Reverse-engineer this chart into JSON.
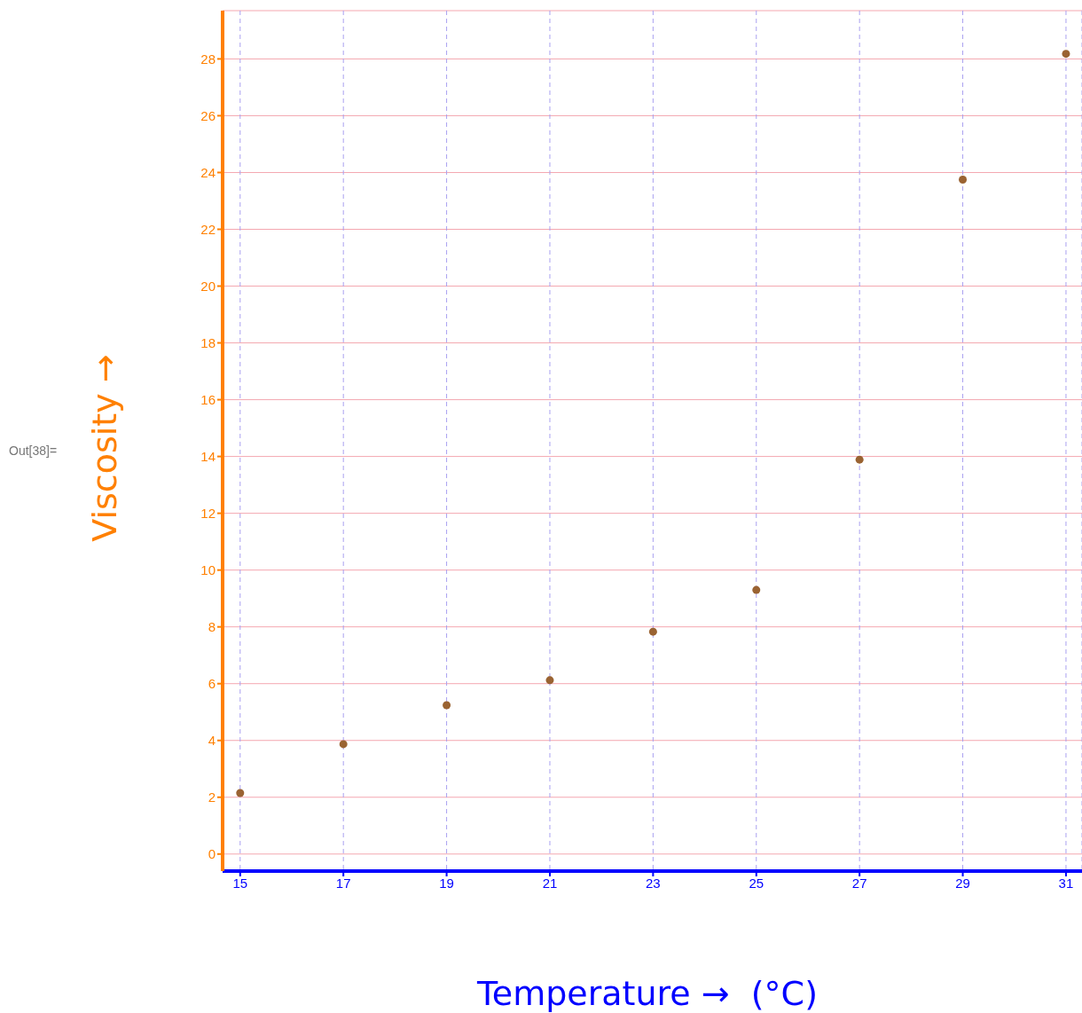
{
  "chart_data": {
    "type": "scatter",
    "xlabel": "Temperature →  (°C)",
    "ylabel": "Viscosity →",
    "annotations": [
      "Out[38]="
    ],
    "x": [
      15,
      17,
      19,
      21,
      23,
      25,
      27,
      29,
      31
    ],
    "series": [
      {
        "color": "#9a6332",
        "values": [
          2.15,
          3.87,
          5.24,
          6.12,
          7.83,
          9.3,
          13.89,
          23.75,
          28.18
        ]
      }
    ],
    "xlim": [
      14.66,
      31.31
    ],
    "xticks": [
      15,
      17,
      19,
      21,
      23,
      25,
      27,
      29,
      31
    ],
    "ylim": [
      -0.6,
      29.7
    ],
    "yticks": [
      0,
      2,
      4,
      6,
      8,
      10,
      12,
      14,
      16,
      18,
      20,
      22,
      24,
      26,
      28
    ],
    "grid": true,
    "marker": "circle"
  }
}
